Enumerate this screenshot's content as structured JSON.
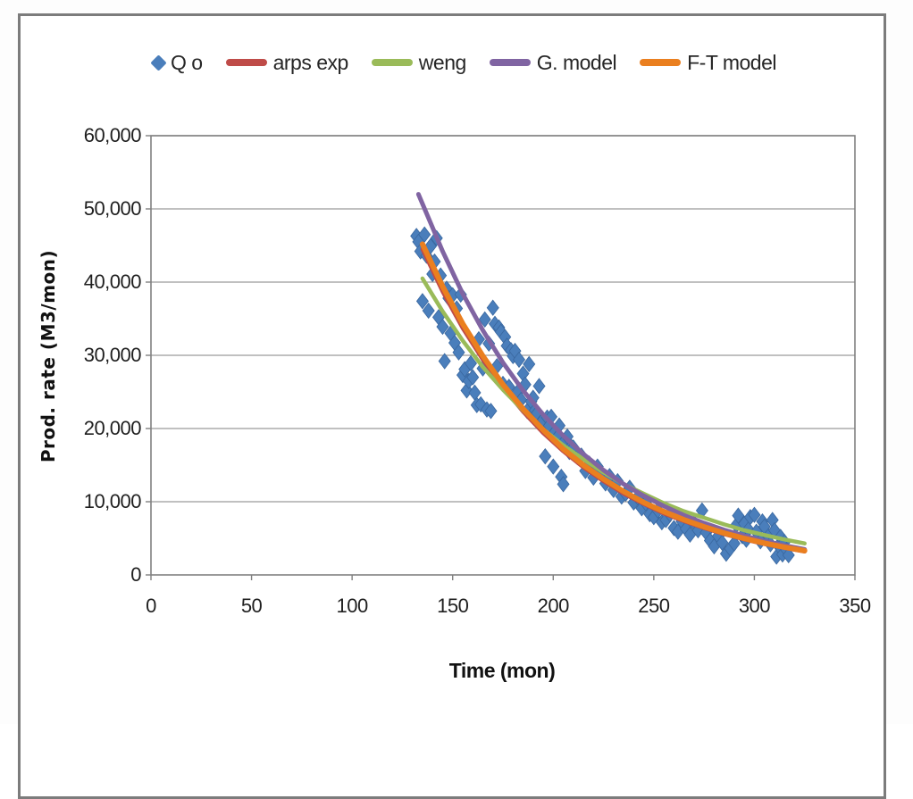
{
  "chart_data": {
    "type": "scatter",
    "title": "",
    "xlabel": "Time (mon)",
    "ylabel": "Prod. rate (M3/mon)",
    "xlim": [
      0,
      350
    ],
    "ylim": [
      0,
      60000
    ],
    "grid": "horizontal",
    "legend_position": "top",
    "x_ticks": [
      "0",
      "50",
      "100",
      "150",
      "200",
      "250",
      "300",
      "350"
    ],
    "x_tick_values": [
      0,
      50,
      100,
      150,
      200,
      250,
      300,
      350
    ],
    "y_ticks": [
      "0",
      "10,000",
      "20,000",
      "30,000",
      "40,000",
      "50,000",
      "60,000"
    ],
    "y_tick_values": [
      0,
      10000,
      20000,
      30000,
      40000,
      50000,
      60000
    ],
    "colors": {
      "qo": "#4a7ebb",
      "qo_edge": "#39679f",
      "arps_exp": "#bf4b48",
      "weng": "#9abb59",
      "g_model": "#8064a2",
      "ft_model": "#ea7f1f",
      "grid": "#9b9b9b",
      "axis": "#808080",
      "frame": "#7c7c7c"
    },
    "legend": [
      {
        "label": "Q o",
        "marker": "diamond",
        "color": "#4a7ebb"
      },
      {
        "label": "arps exp",
        "marker": "line",
        "color": "#bf4b48"
      },
      {
        "label": "weng",
        "marker": "line",
        "color": "#9abb59"
      },
      {
        "label": "G. model",
        "marker": "line",
        "color": "#8064a2"
      },
      {
        "label": "F-T model",
        "marker": "line",
        "color": "#ea7f1f"
      }
    ],
    "scatter": {
      "name": "Q o",
      "points": [
        [
          132,
          46300
        ],
        [
          133,
          45500
        ],
        [
          134,
          44200
        ],
        [
          135,
          37400
        ],
        [
          136,
          46500
        ],
        [
          137,
          43600
        ],
        [
          138,
          36100
        ],
        [
          139,
          44900
        ],
        [
          140,
          41100
        ],
        [
          141,
          42800
        ],
        [
          142,
          46000
        ],
        [
          143,
          35200
        ],
        [
          144,
          40900
        ],
        [
          145,
          33900
        ],
        [
          146,
          29200
        ],
        [
          147,
          39100
        ],
        [
          148,
          37800
        ],
        [
          149,
          33000
        ],
        [
          150,
          38200
        ],
        [
          151,
          31700
        ],
        [
          152,
          36400
        ],
        [
          153,
          30400
        ],
        [
          154,
          38300
        ],
        [
          155,
          27300
        ],
        [
          156,
          28100
        ],
        [
          157,
          25200
        ],
        [
          158,
          26500
        ],
        [
          159,
          28900
        ],
        [
          160,
          27000
        ],
        [
          161,
          24900
        ],
        [
          162,
          23200
        ],
        [
          163,
          32200
        ],
        [
          164,
          23300
        ],
        [
          165,
          28200
        ],
        [
          166,
          34900
        ],
        [
          167,
          22600
        ],
        [
          168,
          31600
        ],
        [
          169,
          22400
        ],
        [
          170,
          36500
        ],
        [
          171,
          34300
        ],
        [
          172,
          28500
        ],
        [
          173,
          33800
        ],
        [
          174,
          33200
        ],
        [
          175,
          26100
        ],
        [
          176,
          32500
        ],
        [
          177,
          31300
        ],
        [
          178,
          25700
        ],
        [
          179,
          30700
        ],
        [
          180,
          29900
        ],
        [
          181,
          30600
        ],
        [
          182,
          24900
        ],
        [
          183,
          29400
        ],
        [
          184,
          23900
        ],
        [
          185,
          27500
        ],
        [
          186,
          26000
        ],
        [
          187,
          22400
        ],
        [
          188,
          28800
        ],
        [
          189,
          23700
        ],
        [
          190,
          24200
        ],
        [
          191,
          22500
        ],
        [
          192,
          22100
        ],
        [
          193,
          25800
        ],
        [
          194,
          20900
        ],
        [
          195,
          21200
        ],
        [
          196,
          16200
        ],
        [
          197,
          21500
        ],
        [
          198,
          20400
        ],
        [
          199,
          21600
        ],
        [
          200,
          14800
        ],
        [
          201,
          19600
        ],
        [
          202,
          18800
        ],
        [
          203,
          20400
        ],
        [
          204,
          13400
        ],
        [
          205,
          12400
        ],
        [
          206,
          18400
        ],
        [
          207,
          18900
        ],
        [
          208,
          16800
        ],
        [
          209,
          17500
        ],
        [
          210,
          17400
        ],
        [
          212,
          16100
        ],
        [
          214,
          16300
        ],
        [
          216,
          14200
        ],
        [
          218,
          15200
        ],
        [
          220,
          13300
        ],
        [
          222,
          14800
        ],
        [
          224,
          13800
        ],
        [
          226,
          12500
        ],
        [
          228,
          13500
        ],
        [
          230,
          11600
        ],
        [
          232,
          12800
        ],
        [
          234,
          10700
        ],
        [
          236,
          11100
        ],
        [
          238,
          11900
        ],
        [
          240,
          9900
        ],
        [
          242,
          10600
        ],
        [
          244,
          9100
        ],
        [
          246,
          9800
        ],
        [
          248,
          8300
        ],
        [
          250,
          7900
        ],
        [
          252,
          8800
        ],
        [
          254,
          7200
        ],
        [
          256,
          7500
        ],
        [
          258,
          8300
        ],
        [
          260,
          6400
        ],
        [
          262,
          5900
        ],
        [
          264,
          7300
        ],
        [
          266,
          6300
        ],
        [
          268,
          5500
        ],
        [
          270,
          7100
        ],
        [
          272,
          6100
        ],
        [
          274,
          8800
        ],
        [
          276,
          5800
        ],
        [
          278,
          4700
        ],
        [
          280,
          3900
        ],
        [
          282,
          5300
        ],
        [
          284,
          4400
        ],
        [
          286,
          2900
        ],
        [
          288,
          3600
        ],
        [
          290,
          4300
        ],
        [
          291,
          6800
        ],
        [
          292,
          8100
        ],
        [
          294,
          5300
        ],
        [
          295,
          7000
        ],
        [
          296,
          4800
        ],
        [
          297,
          6200
        ],
        [
          298,
          7900
        ],
        [
          300,
          8200
        ],
        [
          301,
          5900
        ],
        [
          303,
          4600
        ],
        [
          304,
          7300
        ],
        [
          305,
          6600
        ],
        [
          307,
          5300
        ],
        [
          308,
          4200
        ],
        [
          309,
          7500
        ],
        [
          310,
          6100
        ],
        [
          311,
          2500
        ],
        [
          312,
          4000
        ],
        [
          313,
          5200
        ],
        [
          314,
          2800
        ],
        [
          315,
          4500
        ],
        [
          316,
          3400
        ],
        [
          317,
          2700
        ]
      ]
    },
    "series": [
      {
        "name": "arps exp",
        "color": "#bf4b48",
        "stroke_width": 4.5,
        "x": [
          135,
          145,
          155,
          165,
          175,
          185,
          195,
          205,
          215,
          225,
          235,
          245,
          255,
          265,
          275,
          285,
          295,
          305,
          315,
          325
        ],
        "y": [
          44500,
          38700,
          33700,
          29400,
          25600,
          22300,
          19400,
          16900,
          14700,
          12800,
          11100,
          9700,
          8400,
          7350,
          6400,
          5570,
          4850,
          4220,
          3680,
          3200
        ]
      },
      {
        "name": "weng",
        "color": "#9abb59",
        "stroke_width": 4.5,
        "x": [
          135,
          145,
          155,
          165,
          175,
          185,
          195,
          205,
          215,
          225,
          235,
          245,
          255,
          265,
          275,
          285,
          295,
          305,
          315,
          325
        ],
        "y": [
          40500,
          36000,
          32000,
          28400,
          25300,
          22500,
          19900,
          17700,
          15800,
          14000,
          12400,
          11100,
          9800,
          8700,
          7800,
          6900,
          6100,
          5450,
          4840,
          4300
        ]
      },
      {
        "name": "G. model",
        "color": "#8064a2",
        "stroke_width": 5,
        "x": [
          133,
          145,
          155,
          165,
          175,
          185,
          195,
          205,
          215,
          225,
          235,
          245,
          255,
          265,
          275,
          285,
          295,
          305,
          315,
          325
        ],
        "y": [
          52000,
          44200,
          38400,
          33400,
          29000,
          25200,
          21900,
          19000,
          16500,
          14300,
          12400,
          10800,
          9400,
          8150,
          7080,
          6150,
          5340,
          4640,
          4030,
          3500
        ]
      },
      {
        "name": "F-T model",
        "color": "#ea7f1f",
        "stroke_width": 6,
        "x": [
          135,
          145,
          155,
          165,
          175,
          185,
          195,
          205,
          215,
          225,
          235,
          245,
          255,
          265,
          275,
          285,
          295,
          305,
          315,
          325
        ],
        "y": [
          45200,
          39400,
          34300,
          29900,
          26000,
          22700,
          19800,
          17200,
          15000,
          13100,
          11400,
          9900,
          8650,
          7540,
          6570,
          5720,
          4990,
          4340,
          3790,
          3300
        ]
      }
    ]
  }
}
